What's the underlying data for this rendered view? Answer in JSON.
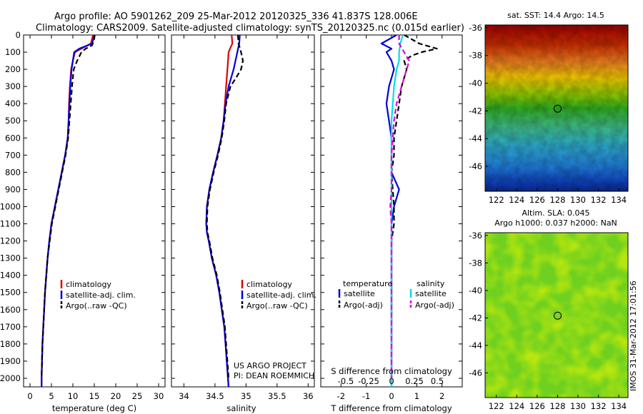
{
  "header": {
    "title_line1": "Argo profile: AO 5901262_209 25-Mar-2012 20120325_336 41.837S 128.006E",
    "title_line2": "Climatology: CARS2009. Satellite-adjusted climatology: synTS_20120325.nc (0.015d earlier)"
  },
  "colors": {
    "climatology": "#e00000",
    "satellite": "#0000e0",
    "argo": "#000000",
    "salinity_satellite": "#00e0e0",
    "salinity_argo": "#e000e0"
  },
  "chart_data": [
    {
      "type": "line",
      "panel": "temperature",
      "xlabel": "temperature (deg C)",
      "ylabel": "",
      "xlim": [
        -1.5,
        31.5
      ],
      "ylim": [
        2050,
        0
      ],
      "xticks": [
        0,
        5,
        10,
        15,
        20,
        25,
        30
      ],
      "yticks": [
        0,
        100,
        200,
        300,
        400,
        500,
        600,
        700,
        800,
        900,
        1000,
        1100,
        1200,
        1300,
        1400,
        1500,
        1600,
        1700,
        1800,
        1900,
        2000
      ],
      "legend": [
        "climatology",
        "satellite-adj. clim.",
        "Argo(..raw -QC)"
      ],
      "legend_position": "lower-center",
      "series": [
        {
          "name": "climatology",
          "color": "#e00000",
          "style": "solid",
          "points": [
            [
              14.7,
              0
            ],
            [
              14.5,
              20
            ],
            [
              14.2,
              50
            ],
            [
              12,
              80
            ],
            [
              10.5,
              100
            ],
            [
              10,
              150
            ],
            [
              9.6,
              200
            ],
            [
              9.3,
              300
            ],
            [
              9.1,
              400
            ],
            [
              9.0,
              500
            ],
            [
              8.8,
              600
            ],
            [
              8.2,
              700
            ],
            [
              7.4,
              800
            ],
            [
              6.6,
              900
            ],
            [
              5.8,
              1000
            ],
            [
              5.0,
              1100
            ],
            [
              4.5,
              1200
            ],
            [
              4.1,
              1300
            ],
            [
              3.8,
              1400
            ],
            [
              3.5,
              1500
            ],
            [
              3.3,
              1600
            ],
            [
              3.1,
              1700
            ],
            [
              2.9,
              1800
            ],
            [
              2.8,
              1900
            ],
            [
              2.7,
              2000
            ],
            [
              2.7,
              2050
            ]
          ]
        },
        {
          "name": "satellite-adj. clim.",
          "color": "#0000e0",
          "style": "solid",
          "points": [
            [
              15.0,
              0
            ],
            [
              14.8,
              20
            ],
            [
              14.5,
              50
            ],
            [
              11.5,
              80
            ],
            [
              10.3,
              100
            ],
            [
              10,
              150
            ],
            [
              9.7,
              200
            ],
            [
              9.4,
              300
            ],
            [
              9.2,
              400
            ],
            [
              9.0,
              500
            ],
            [
              8.8,
              600
            ],
            [
              8.2,
              700
            ],
            [
              7.4,
              800
            ],
            [
              6.6,
              900
            ],
            [
              5.8,
              1000
            ],
            [
              5.0,
              1100
            ],
            [
              4.5,
              1200
            ],
            [
              4.1,
              1300
            ],
            [
              3.8,
              1400
            ],
            [
              3.5,
              1500
            ],
            [
              3.3,
              1600
            ],
            [
              3.1,
              1700
            ],
            [
              2.9,
              1800
            ],
            [
              2.8,
              1900
            ],
            [
              2.7,
              2000
            ],
            [
              2.7,
              2050
            ]
          ]
        },
        {
          "name": "Argo(..raw -QC)",
          "color": "#000000",
          "style": "dashed",
          "points": [
            [
              15.1,
              0
            ],
            [
              15.0,
              20
            ],
            [
              14.5,
              60
            ],
            [
              13.0,
              80
            ],
            [
              12.0,
              100
            ],
            [
              11.0,
              150
            ],
            [
              10.2,
              200
            ],
            [
              9.8,
              300
            ],
            [
              9.5,
              400
            ],
            [
              9.2,
              500
            ],
            [
              8.9,
              600
            ],
            [
              8.3,
              700
            ],
            [
              7.5,
              800
            ],
            [
              6.7,
              900
            ],
            [
              5.9,
              1000
            ],
            [
              5.1,
              1100
            ],
            [
              4.6,
              1200
            ],
            [
              4.1,
              1300
            ],
            [
              3.8,
              1400
            ],
            [
              3.5,
              1500
            ],
            [
              3.3,
              1600
            ],
            [
              3.1,
              1700
            ],
            [
              2.9,
              1800
            ],
            [
              2.8,
              1900
            ],
            [
              2.7,
              2000
            ]
          ]
        }
      ]
    },
    {
      "type": "line",
      "panel": "salinity",
      "xlabel": "salinity",
      "ylabel": "",
      "xlim": [
        33.8,
        36.1
      ],
      "ylim": [
        2050,
        0
      ],
      "xticks": [
        34,
        34.5,
        35,
        35.5,
        36
      ],
      "yticks": [],
      "legend": [
        "climatology",
        "satellite-adj. clim.",
        "Argo(..raw -QC)"
      ],
      "legend_position": "lower-right",
      "annotations": [
        "US ARGO PROJECT",
        "PI: DEAN ROEMMICH"
      ],
      "series": [
        {
          "name": "climatology",
          "color": "#e00000",
          "style": "solid",
          "points": [
            [
              34.77,
              0
            ],
            [
              34.78,
              50
            ],
            [
              34.72,
              100
            ],
            [
              34.7,
              200
            ],
            [
              34.68,
              300
            ],
            [
              34.66,
              400
            ],
            [
              34.64,
              500
            ],
            [
              34.6,
              600
            ],
            [
              34.54,
              700
            ],
            [
              34.47,
              800
            ],
            [
              34.41,
              900
            ],
            [
              34.37,
              1000
            ],
            [
              34.36,
              1100
            ],
            [
              34.37,
              1150
            ],
            [
              34.4,
              1200
            ],
            [
              34.45,
              1300
            ],
            [
              34.52,
              1400
            ],
            [
              34.57,
              1500
            ],
            [
              34.61,
              1600
            ],
            [
              34.65,
              1700
            ],
            [
              34.67,
              1800
            ],
            [
              34.69,
              1900
            ],
            [
              34.71,
              2000
            ],
            [
              34.72,
              2050
            ]
          ]
        },
        {
          "name": "satellite-adj. clim.",
          "color": "#0000e0",
          "style": "solid",
          "points": [
            [
              34.9,
              0
            ],
            [
              34.89,
              50
            ],
            [
              34.86,
              100
            ],
            [
              34.8,
              200
            ],
            [
              34.72,
              300
            ],
            [
              34.67,
              400
            ],
            [
              34.64,
              500
            ],
            [
              34.6,
              600
            ],
            [
              34.54,
              700
            ],
            [
              34.47,
              800
            ],
            [
              34.41,
              900
            ],
            [
              34.37,
              1000
            ],
            [
              34.36,
              1100
            ],
            [
              34.37,
              1150
            ],
            [
              34.4,
              1200
            ],
            [
              34.45,
              1300
            ],
            [
              34.52,
              1400
            ],
            [
              34.57,
              1500
            ],
            [
              34.61,
              1600
            ],
            [
              34.65,
              1700
            ],
            [
              34.67,
              1800
            ],
            [
              34.69,
              1900
            ],
            [
              34.71,
              2000
            ],
            [
              34.72,
              2050
            ]
          ]
        },
        {
          "name": "Argo(..raw -QC)",
          "color": "#000000",
          "style": "dashed",
          "points": [
            [
              34.87,
              0
            ],
            [
              34.88,
              50
            ],
            [
              34.92,
              100
            ],
            [
              34.95,
              150
            ],
            [
              34.92,
              200
            ],
            [
              34.84,
              250
            ],
            [
              34.75,
              300
            ],
            [
              34.68,
              400
            ],
            [
              34.65,
              500
            ],
            [
              34.61,
              600
            ],
            [
              34.55,
              700
            ],
            [
              34.48,
              800
            ],
            [
              34.42,
              900
            ],
            [
              34.38,
              1000
            ],
            [
              34.37,
              1100
            ],
            [
              34.38,
              1150
            ],
            [
              34.41,
              1200
            ],
            [
              34.46,
              1300
            ],
            [
              34.53,
              1400
            ],
            [
              34.58,
              1500
            ],
            [
              34.62,
              1600
            ],
            [
              34.66,
              1700
            ],
            [
              34.68,
              1800
            ],
            [
              34.7,
              1900
            ],
            [
              34.72,
              2000
            ]
          ]
        }
      ]
    },
    {
      "type": "line",
      "panel": "difference",
      "xlabel": "T difference from climatology",
      "top_axis_label": "S difference from climatology",
      "ylabel": "",
      "xlim": [
        -2.8,
        2.8
      ],
      "ylim": [
        2050,
        0
      ],
      "xticks": [
        -2,
        -1,
        0,
        1,
        2
      ],
      "top_ticks": [
        "-0.5",
        "-0.25",
        "0",
        "0.25",
        "0.5"
      ],
      "yticks": [],
      "legend_groups": [
        {
          "title": "temperature",
          "entries": [
            "satellite",
            "Argo(-adj)"
          ]
        },
        {
          "title": "salinity",
          "entries": [
            "satellite",
            "Argo(-adj)"
          ]
        }
      ],
      "legend_position": "lower-center",
      "series": [
        {
          "name": "temperature satellite",
          "color": "#0000e0",
          "style": "solid",
          "points": [
            [
              0.2,
              0
            ],
            [
              -0.4,
              50
            ],
            [
              0,
              80
            ],
            [
              -0.2,
              100
            ],
            [
              0,
              150
            ],
            [
              0.1,
              200
            ],
            [
              -0.1,
              300
            ],
            [
              -0.2,
              400
            ],
            [
              -0.1,
              500
            ],
            [
              0,
              600
            ],
            [
              0,
              700
            ],
            [
              0,
              800
            ],
            [
              0.3,
              900
            ],
            [
              0.1,
              1000
            ],
            [
              0,
              1100
            ],
            [
              0,
              1200
            ],
            [
              0,
              1500
            ],
            [
              0,
              2000
            ],
            [
              0,
              2050
            ]
          ]
        },
        {
          "name": "temperature Argo(-adj)",
          "color": "#000000",
          "style": "dashed",
          "points": [
            [
              0.5,
              0
            ],
            [
              1.1,
              50
            ],
            [
              1.8,
              80
            ],
            [
              1.2,
              100
            ],
            [
              0.8,
              120
            ],
            [
              0.5,
              150
            ],
            [
              0.6,
              200
            ],
            [
              0.4,
              300
            ],
            [
              0.3,
              400
            ],
            [
              0.2,
              500
            ],
            [
              0.1,
              600
            ],
            [
              0.1,
              700
            ],
            [
              0,
              800
            ],
            [
              0.1,
              1000
            ],
            [
              0.1,
              1100
            ],
            [
              0,
              1200
            ],
            [
              0,
              1500
            ],
            [
              0,
              2000
            ]
          ]
        },
        {
          "name": "salinity satellite",
          "color": "#00e0e0",
          "style": "solid",
          "points": [
            [
              0.45,
              0
            ],
            [
              0.35,
              50
            ],
            [
              0.3,
              100
            ],
            [
              0.3,
              150
            ],
            [
              0.2,
              200
            ],
            [
              0.1,
              300
            ],
            [
              0.05,
              400
            ],
            [
              0,
              500
            ],
            [
              0,
              600
            ],
            [
              0,
              700
            ],
            [
              0,
              1000
            ],
            [
              0,
              1500
            ],
            [
              0,
              2000
            ],
            [
              0,
              2050
            ]
          ]
        },
        {
          "name": "salinity Argo(-adj)",
          "color": "#e000e0",
          "style": "dashed",
          "points": [
            [
              0.3,
              0
            ],
            [
              0.3,
              50
            ],
            [
              0.5,
              100
            ],
            [
              0.7,
              150
            ],
            [
              0.6,
              200
            ],
            [
              0.4,
              300
            ],
            [
              0.2,
              400
            ],
            [
              0.1,
              500
            ],
            [
              0.05,
              600
            ],
            [
              0,
              700
            ],
            [
              0,
              800
            ],
            [
              0,
              900
            ],
            [
              -0.05,
              1000
            ],
            [
              0,
              1100
            ],
            [
              0,
              1200
            ],
            [
              0,
              1500
            ],
            [
              0,
              2000
            ]
          ]
        }
      ]
    }
  ],
  "maps": {
    "sst": {
      "title": "sat. SST: 14.4 Argo: 14.5",
      "lat_ticks": [
        -36,
        -38,
        -40,
        -42,
        -44,
        -46
      ],
      "lon_ticks": [
        122,
        124,
        126,
        128,
        130,
        132,
        134
      ],
      "marker": {
        "lon": 128.006,
        "lat": -41.837
      }
    },
    "sla": {
      "title_line1": "Altim. SLA: 0.045",
      "title_line2": "Argo h1000: 0.037 h2000: NaN",
      "lat_ticks": [
        -36,
        -38,
        -40,
        -42,
        -44,
        -46
      ],
      "lon_ticks": [
        122,
        124,
        126,
        128,
        130,
        132,
        134
      ],
      "marker": {
        "lon": 128.006,
        "lat": -41.837
      }
    }
  },
  "footer": {
    "credit": "IMOS 31-Mar-2012 17:01:56"
  }
}
